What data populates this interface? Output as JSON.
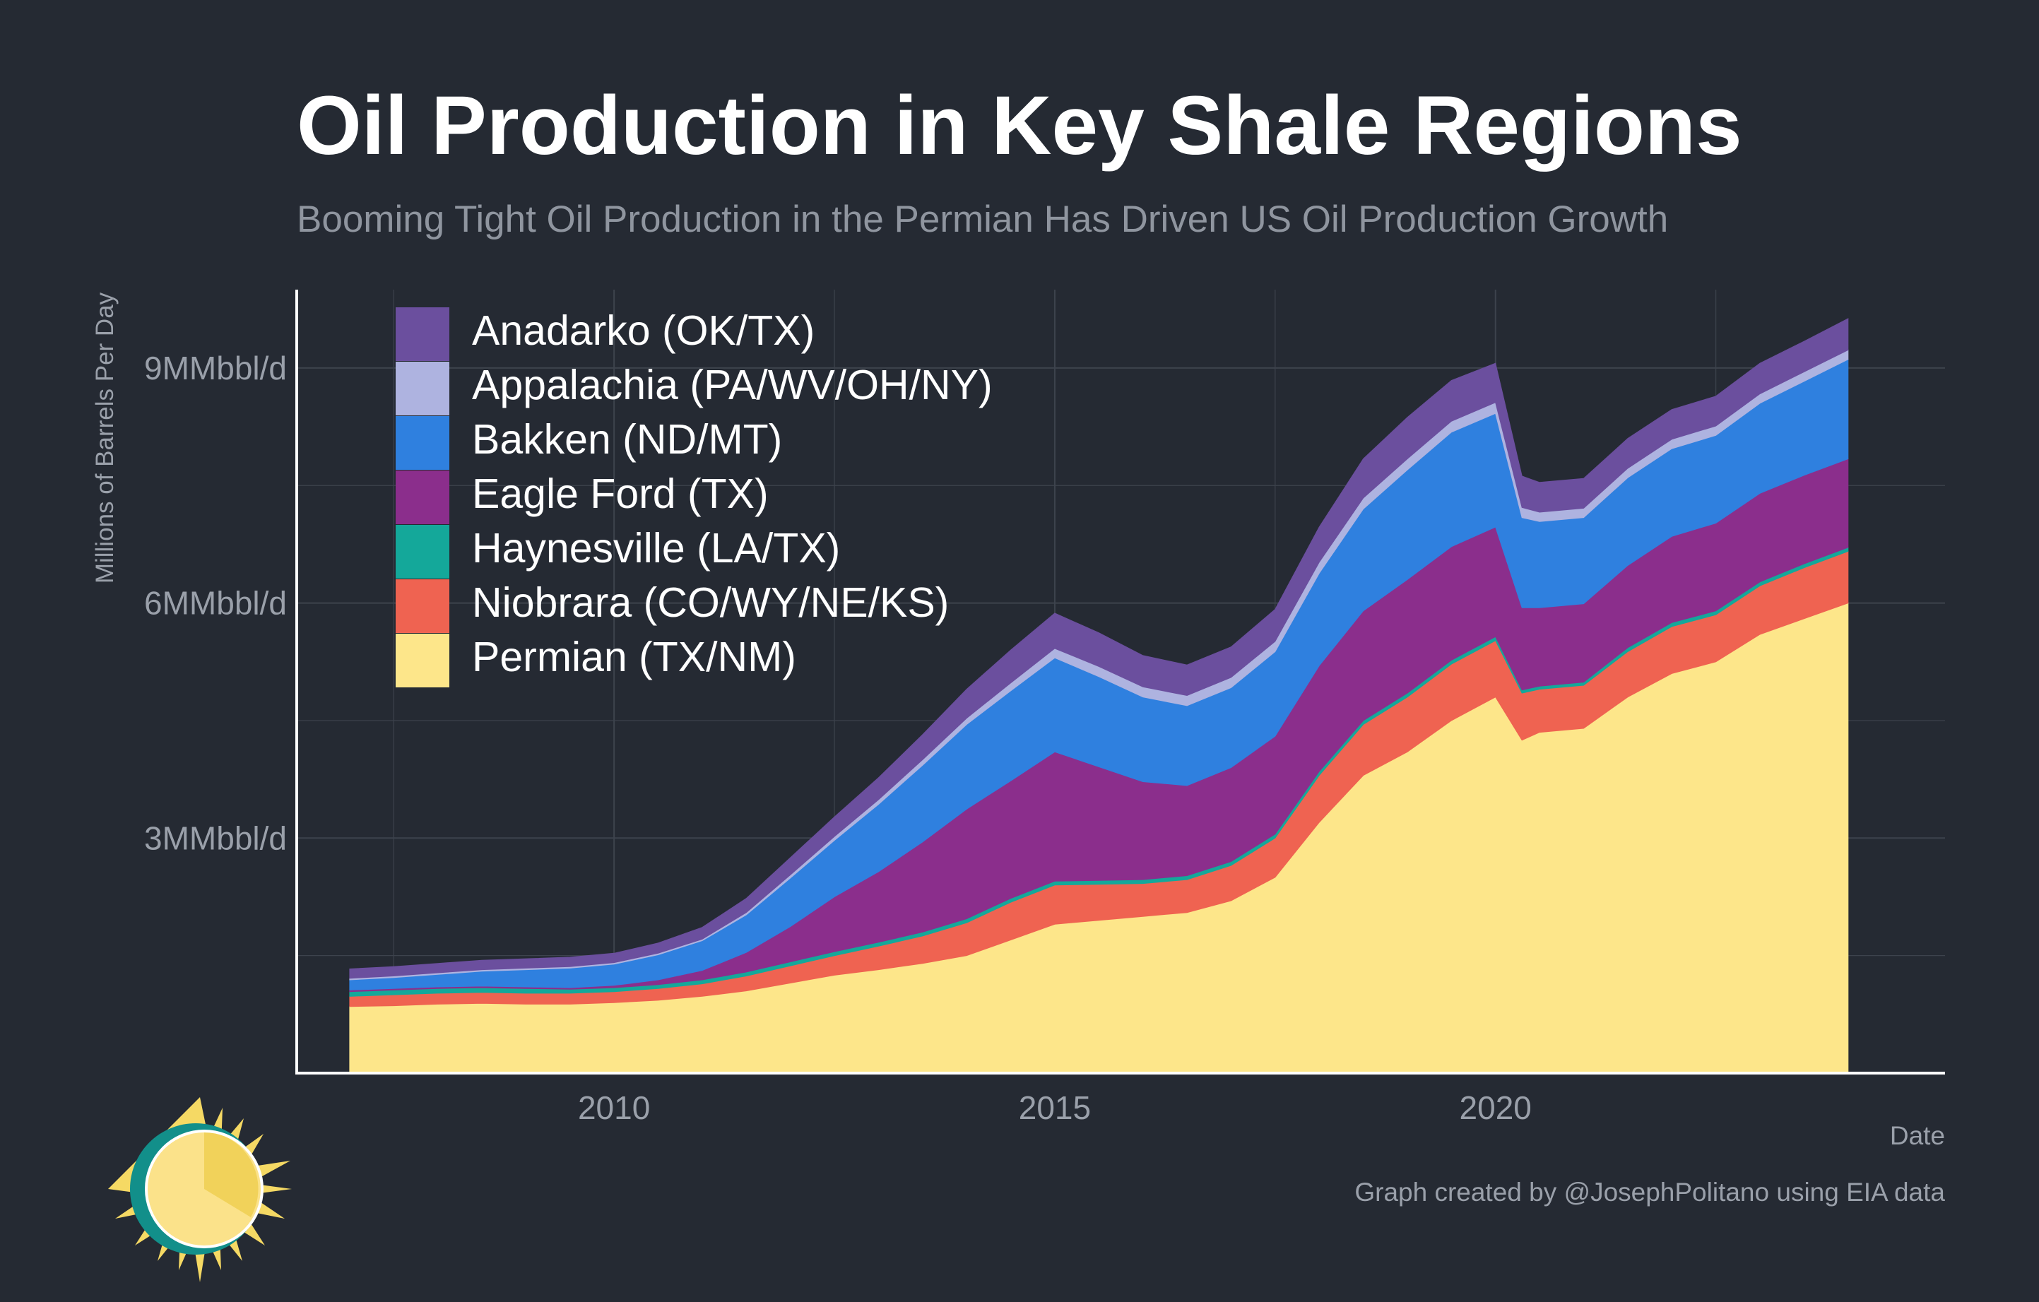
{
  "colors": {
    "background": "#252a33",
    "gridline": "#3d434d",
    "axis": "#ffffff"
  },
  "chart_data": {
    "type": "area",
    "stacked": true,
    "title": "Oil Production in Key Shale Regions",
    "subtitle": "Booming Tight Oil Production in the Permian Has Driven US Oil Production Growth",
    "xlabel": "Date",
    "ylabel": "Millions of Barrels Per Day",
    "caption": "Graph created by @JosephPolitano using EIA data",
    "xlim": [
      2006.4,
      2025.1
    ],
    "ylim": [
      0,
      10
    ],
    "x_ticks": [
      2010,
      2015,
      2020
    ],
    "x_tick_labels": [
      "2010",
      "2015",
      "2020"
    ],
    "y_ticks": [
      3,
      6,
      9
    ],
    "y_tick_labels": [
      "3MMbbl/d",
      "6MMbbl/d",
      "9MMbbl/d"
    ],
    "grid": true,
    "legend_position": "top-left",
    "x": [
      2007.0,
      2007.5,
      2008.0,
      2008.5,
      2009.0,
      2009.5,
      2010.0,
      2010.5,
      2011.0,
      2011.5,
      2012.0,
      2012.5,
      2013.0,
      2013.5,
      2014.0,
      2014.5,
      2015.0,
      2015.5,
      2016.0,
      2016.5,
      2017.0,
      2017.5,
      2018.0,
      2018.5,
      2019.0,
      2019.5,
      2020.0,
      2020.3,
      2020.5,
      2021.0,
      2021.5,
      2022.0,
      2022.5,
      2023.0,
      2023.5,
      2024.0
    ],
    "series": [
      {
        "name": "Permian (TX/NM)",
        "color": "#fde68a",
        "values": [
          0.85,
          0.86,
          0.88,
          0.89,
          0.88,
          0.88,
          0.9,
          0.93,
          0.98,
          1.05,
          1.15,
          1.25,
          1.32,
          1.4,
          1.5,
          1.7,
          1.9,
          1.95,
          2.0,
          2.05,
          2.2,
          2.5,
          3.2,
          3.8,
          4.1,
          4.5,
          4.8,
          4.25,
          4.35,
          4.4,
          4.8,
          5.1,
          5.25,
          5.6,
          5.8,
          6.0
        ]
      },
      {
        "name": "Niobrara (CO/WY/NE/KS)",
        "color": "#ef6351",
        "values": [
          0.13,
          0.14,
          0.14,
          0.14,
          0.14,
          0.14,
          0.14,
          0.15,
          0.16,
          0.19,
          0.22,
          0.25,
          0.3,
          0.35,
          0.42,
          0.48,
          0.5,
          0.46,
          0.42,
          0.42,
          0.45,
          0.5,
          0.6,
          0.65,
          0.7,
          0.72,
          0.72,
          0.6,
          0.55,
          0.55,
          0.58,
          0.6,
          0.6,
          0.62,
          0.65,
          0.66
        ]
      },
      {
        "name": "Haynesville (LA/TX)",
        "color": "#14a89a",
        "values": [
          0.06,
          0.06,
          0.06,
          0.06,
          0.06,
          0.05,
          0.05,
          0.05,
          0.05,
          0.05,
          0.05,
          0.05,
          0.05,
          0.05,
          0.05,
          0.05,
          0.05,
          0.05,
          0.05,
          0.05,
          0.05,
          0.05,
          0.05,
          0.05,
          0.05,
          0.05,
          0.05,
          0.04,
          0.04,
          0.04,
          0.05,
          0.05,
          0.05,
          0.05,
          0.05,
          0.05
        ]
      },
      {
        "name": "Eagle Ford (TX)",
        "color": "#8b2e8c",
        "values": [
          0.02,
          0.02,
          0.02,
          0.02,
          0.02,
          0.02,
          0.03,
          0.06,
          0.12,
          0.25,
          0.45,
          0.7,
          0.9,
          1.15,
          1.4,
          1.5,
          1.65,
          1.45,
          1.25,
          1.15,
          1.2,
          1.25,
          1.35,
          1.4,
          1.45,
          1.45,
          1.4,
          1.05,
          1.0,
          1.0,
          1.05,
          1.1,
          1.12,
          1.13,
          1.13,
          1.13
        ]
      },
      {
        "name": "Bakken (ND/MT)",
        "color": "#2f80df",
        "values": [
          0.13,
          0.14,
          0.16,
          0.19,
          0.22,
          0.25,
          0.27,
          0.32,
          0.38,
          0.48,
          0.62,
          0.72,
          0.86,
          0.98,
          1.08,
          1.15,
          1.2,
          1.15,
          1.08,
          1.02,
          1.02,
          1.08,
          1.18,
          1.3,
          1.4,
          1.46,
          1.45,
          1.15,
          1.1,
          1.1,
          1.12,
          1.12,
          1.12,
          1.15,
          1.2,
          1.27
        ]
      },
      {
        "name": "Appalachia (PA/WV/OH/NY)",
        "color": "#aeb3e0",
        "values": [
          0.02,
          0.02,
          0.02,
          0.02,
          0.02,
          0.02,
          0.02,
          0.02,
          0.02,
          0.03,
          0.04,
          0.05,
          0.06,
          0.07,
          0.08,
          0.1,
          0.12,
          0.13,
          0.13,
          0.13,
          0.13,
          0.13,
          0.14,
          0.14,
          0.14,
          0.14,
          0.14,
          0.13,
          0.12,
          0.12,
          0.12,
          0.12,
          0.12,
          0.12,
          0.12,
          0.12
        ]
      },
      {
        "name": "Anadarko (OK/TX)",
        "color": "#6b4f9e",
        "values": [
          0.12,
          0.12,
          0.12,
          0.12,
          0.12,
          0.12,
          0.12,
          0.13,
          0.15,
          0.18,
          0.22,
          0.25,
          0.28,
          0.32,
          0.37,
          0.42,
          0.45,
          0.43,
          0.4,
          0.39,
          0.39,
          0.41,
          0.45,
          0.5,
          0.53,
          0.52,
          0.5,
          0.4,
          0.38,
          0.38,
          0.38,
          0.38,
          0.38,
          0.39,
          0.39,
          0.4
        ]
      }
    ]
  }
}
